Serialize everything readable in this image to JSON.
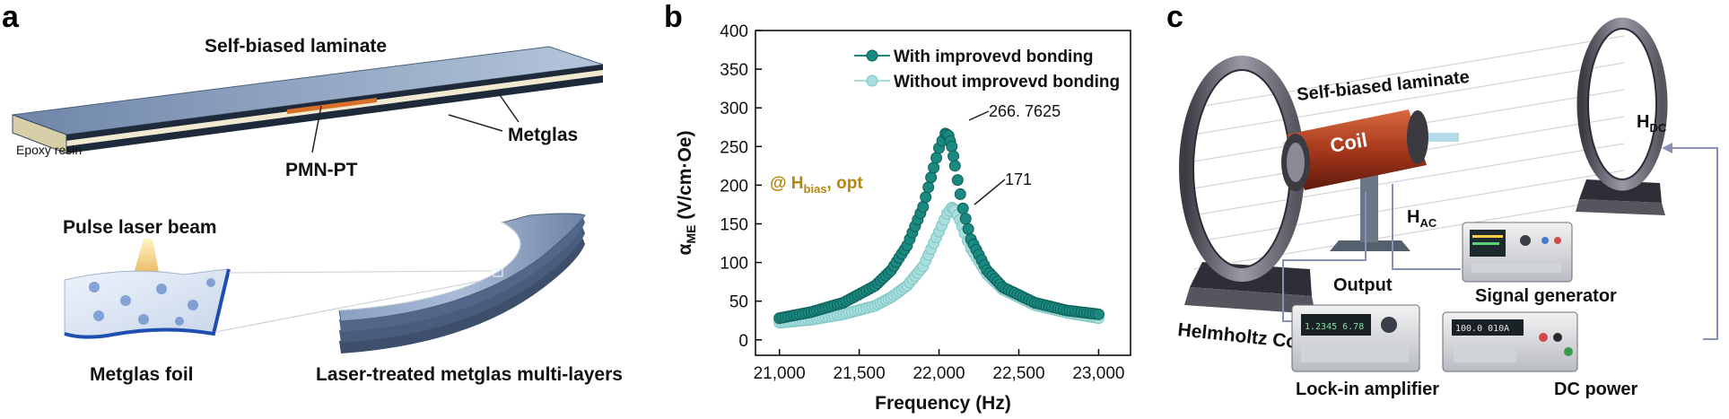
{
  "panel_a": {
    "letter": "a",
    "laminate_title": "Self-biased laminate",
    "epoxy_label": "Epoxy resin",
    "pmn_label": "PMN-PT",
    "metglas_label": "Metglas",
    "pulse_label": "Pulse laser beam",
    "foil_label": "Metglas foil",
    "multilayer_label": "Laser-treated metglas multi-layers"
  },
  "panel_b": {
    "letter": "b",
    "annotation_main": "@ H",
    "annotation_sub": "bias",
    "annotation_tail": ", opt",
    "peak1_label": "266. 7625",
    "peak2_label": "171",
    "ylabel_main": "α",
    "ylabel_sub": "ME",
    "ylabel_tail": " (V/cm·Oe)"
  },
  "chart_data": {
    "type": "scatter",
    "title": "",
    "xlabel": "Frequency (Hz)",
    "ylabel": "αME (V/cm·Oe)",
    "xlim": [
      20850,
      23200
    ],
    "ylim": [
      -20,
      400
    ],
    "xticks": [
      "21,000",
      "21,500",
      "22,000",
      "22,500",
      "23,000"
    ],
    "xtick_values": [
      21000,
      21500,
      22000,
      22500,
      23000
    ],
    "yticks": [
      "0",
      "50",
      "100",
      "150",
      "200",
      "250",
      "300",
      "350",
      "400"
    ],
    "ytick_values": [
      0,
      50,
      100,
      150,
      200,
      250,
      300,
      350,
      400
    ],
    "legend_position": "top-right",
    "series": [
      {
        "name": "With improvevd bonding",
        "color": "#1a8a80",
        "x": [
          21000,
          21200,
          21400,
          21600,
          21700,
          21800,
          21900,
          21950,
          22000,
          22040,
          22060,
          22080,
          22100,
          22150,
          22200,
          22300,
          22400,
          22600,
          22800,
          23000
        ],
        "y": [
          28,
          36,
          48,
          70,
          90,
          122,
          172,
          210,
          248,
          266.76,
          264,
          250,
          225,
          170,
          130,
          90,
          68,
          48,
          38,
          33
        ]
      },
      {
        "name": "Without improvevd bonding",
        "color": "#a8dede",
        "x": [
          21000,
          21200,
          21400,
          21600,
          21700,
          21800,
          21900,
          22000,
          22050,
          22080,
          22100,
          22130,
          22160,
          22200,
          22300,
          22400,
          22600,
          22800,
          23000
        ],
        "y": [
          22,
          26,
          33,
          44,
          55,
          70,
          95,
          140,
          163,
          171,
          168,
          155,
          138,
          118,
          85,
          65,
          45,
          35,
          28
        ]
      }
    ]
  },
  "panel_c": {
    "letter": "c",
    "laminate_label": "Self-biased laminate",
    "coil_label": "Coil",
    "hdc_main": "H",
    "hdc_sub": "DC",
    "hac_main": "H",
    "hac_sub": "AC",
    "output_label": "Output",
    "signal_label": "Signal generator",
    "helmholtz_label": "Helmholtz Coil",
    "lockin_label": "Lock-in amplifier",
    "dc_label": "DC power",
    "lockin_screen": "1.2345 6.78",
    "dc_screen": "100.0  010A"
  },
  "colors": {
    "teal_dark": "#1a8a80",
    "teal_light": "#a8dede",
    "gold": "#b8860b",
    "laminate_top": "#8fa6c4",
    "wire": "#8890b8"
  }
}
